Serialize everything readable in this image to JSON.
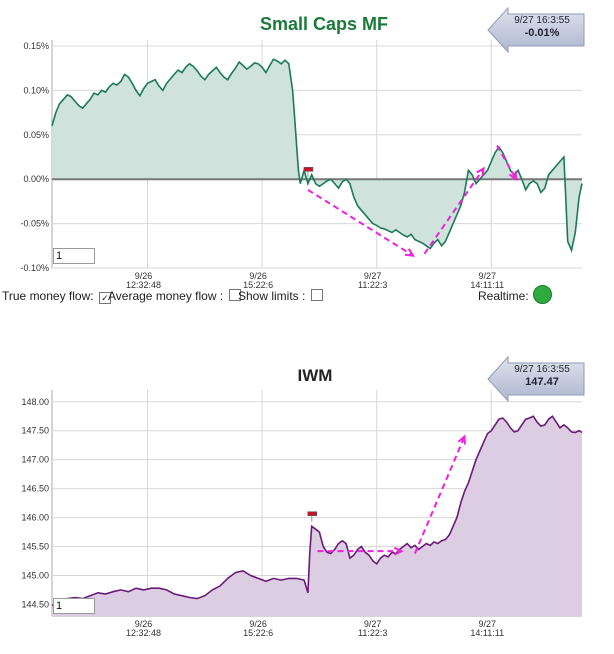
{
  "colors": {
    "mf_line": "#1b7a5a",
    "mf_fill": "#cfe3dc",
    "iwm_line": "#6a1b7a",
    "iwm_fill": "#dccde2",
    "annotation": "#ee22dd",
    "grid": "#d8d8d8",
    "zero_line": "#777777",
    "realtime_dot": "#2eaa3f"
  },
  "controls": {
    "true_money_flow_label": "True money flow:",
    "true_money_flow_checked": "✓",
    "average_money_flow_label": "Average money flow :",
    "show_limits_label": "Show limits :",
    "realtime_label": "Realtime:"
  },
  "chart_data": [
    {
      "type": "area",
      "title": "Small Caps MF",
      "xlabel": "",
      "ylabel": "",
      "ylim": [
        -0.1,
        0.15
      ],
      "y_ticks": [
        "0.15%",
        "0.10%",
        "0.05%",
        "0.00%",
        "-0.05%",
        "-0.10%"
      ],
      "y_tick_values": [
        0.15,
        0.1,
        0.05,
        0.0,
        -0.05,
        -0.1
      ],
      "x_ticks": [
        {
          "date": "9/26",
          "time": "12:32:48",
          "x": 100
        },
        {
          "date": "9/26",
          "time": "15:22:6",
          "x": 220
        },
        {
          "date": "9/27",
          "time": "11:22:3",
          "x": 340
        },
        {
          "date": "9/27",
          "time": "14:11:11",
          "x": 460
        }
      ],
      "xlim": [
        0,
        555
      ],
      "grid": true,
      "badge": {
        "time": "9/27 16:3:55",
        "value": "-0.01%"
      },
      "input_value": "1",
      "marker": {
        "x": 268,
        "y": 0.01
      },
      "series": [
        {
          "x": [
            0,
            4,
            8,
            12,
            16,
            20,
            24,
            28,
            32,
            36,
            40,
            44,
            48,
            52,
            56,
            60,
            64,
            68,
            72,
            76,
            80,
            84,
            88,
            92,
            96,
            100,
            104,
            108,
            112,
            116,
            120,
            124,
            128,
            132,
            136,
            140,
            144,
            148,
            152,
            156,
            160,
            164,
            168,
            172,
            176,
            180,
            184,
            188,
            192,
            196,
            200,
            204,
            208,
            212,
            216,
            220,
            224,
            228,
            232,
            236,
            240,
            244,
            248,
            252,
            254,
            256,
            258,
            260,
            264,
            268,
            272,
            276,
            280,
            284,
            288,
            292,
            296,
            300,
            304,
            308,
            312,
            316,
            320,
            324,
            328,
            332,
            336,
            340,
            344,
            348,
            352,
            356,
            360,
            364,
            368,
            372,
            376,
            380,
            384,
            388,
            392,
            396,
            400,
            404,
            408,
            412,
            416,
            420,
            424,
            428,
            432,
            436,
            440,
            444,
            448,
            452,
            456,
            460,
            464,
            468,
            472,
            476,
            480,
            484,
            488,
            492,
            496,
            500,
            504,
            508,
            512,
            516,
            520,
            524,
            528,
            532,
            536,
            540,
            544,
            548,
            552,
            555
          ],
          "y": [
            0.06,
            0.075,
            0.085,
            0.09,
            0.095,
            0.093,
            0.088,
            0.083,
            0.08,
            0.085,
            0.09,
            0.097,
            0.095,
            0.1,
            0.098,
            0.104,
            0.108,
            0.106,
            0.11,
            0.118,
            0.115,
            0.108,
            0.1,
            0.094,
            0.102,
            0.108,
            0.11,
            0.112,
            0.105,
            0.1,
            0.108,
            0.113,
            0.118,
            0.123,
            0.12,
            0.126,
            0.13,
            0.127,
            0.122,
            0.116,
            0.112,
            0.118,
            0.122,
            0.126,
            0.12,
            0.115,
            0.112,
            0.119,
            0.125,
            0.132,
            0.128,
            0.124,
            0.127,
            0.131,
            0.13,
            0.126,
            0.12,
            0.128,
            0.135,
            0.133,
            0.13,
            0.134,
            0.13,
            0.1,
            0.07,
            0.04,
            0.01,
            -0.005,
            0.01,
            -0.005,
            0.005,
            -0.005,
            -0.008,
            -0.005,
            -0.002,
            0.0,
            -0.005,
            -0.01,
            -0.003,
            0.0,
            -0.005,
            -0.02,
            -0.03,
            -0.035,
            -0.04,
            -0.045,
            -0.05,
            -0.052,
            -0.055,
            -0.056,
            -0.058,
            -0.06,
            -0.057,
            -0.06,
            -0.063,
            -0.065,
            -0.062,
            -0.068,
            -0.07,
            -0.072,
            -0.075,
            -0.078,
            -0.072,
            -0.068,
            -0.075,
            -0.07,
            -0.06,
            -0.05,
            -0.04,
            -0.03,
            -0.015,
            0.01,
            0.005,
            -0.005,
            0.0,
            0.005,
            0.01,
            0.02,
            0.03,
            0.036,
            0.03,
            0.02,
            0.01,
            0.005,
            0.01,
            0.0,
            -0.012,
            -0.005,
            -0.002,
            -0.005,
            -0.015,
            -0.01,
            0.005,
            0.01,
            0.015,
            0.02,
            0.025,
            -0.07,
            -0.08,
            -0.06,
            -0.02,
            -0.005
          ]
        }
      ]
    },
    {
      "type": "area",
      "title": "IWM",
      "xlabel": "",
      "ylabel": "",
      "ylim": [
        144.3,
        148.1
      ],
      "y_ticks": [
        "148.00",
        "147.50",
        "147.00",
        "146.50",
        "146.00",
        "145.50",
        "145.00",
        "144.50"
      ],
      "y_tick_values": [
        148.0,
        147.5,
        147.0,
        146.5,
        146.0,
        145.5,
        145.0,
        144.5
      ],
      "x_ticks": [
        {
          "date": "9/26",
          "time": "12:32:48",
          "x": 100
        },
        {
          "date": "9/26",
          "time": "15:22:6",
          "x": 220
        },
        {
          "date": "9/27",
          "time": "11:22:3",
          "x": 340
        },
        {
          "date": "9/27",
          "time": "14:11:11",
          "x": 460
        }
      ],
      "xlim": [
        0,
        555
      ],
      "grid": true,
      "badge": {
        "time": "9/27 16:3:55",
        "value": "147.47"
      },
      "input_value": "1",
      "marker": {
        "x": 272,
        "y": 146.05
      },
      "series": [
        {
          "x": [
            0,
            8,
            16,
            24,
            32,
            40,
            48,
            56,
            64,
            72,
            80,
            88,
            96,
            104,
            112,
            120,
            128,
            136,
            144,
            152,
            160,
            168,
            176,
            184,
            192,
            200,
            208,
            216,
            224,
            232,
            240,
            248,
            256,
            264,
            268,
            270,
            272,
            276,
            280,
            284,
            288,
            292,
            296,
            300,
            304,
            308,
            312,
            316,
            320,
            324,
            328,
            332,
            336,
            340,
            344,
            348,
            352,
            356,
            360,
            364,
            368,
            372,
            376,
            380,
            384,
            388,
            392,
            396,
            400,
            404,
            408,
            412,
            416,
            420,
            424,
            428,
            432,
            436,
            440,
            444,
            448,
            452,
            456,
            460,
            464,
            468,
            472,
            476,
            480,
            484,
            488,
            492,
            496,
            500,
            504,
            508,
            512,
            516,
            520,
            524,
            528,
            532,
            536,
            540,
            544,
            548,
            552,
            555
          ],
          "y": [
            144.48,
            144.55,
            144.6,
            144.62,
            144.6,
            144.65,
            144.7,
            144.68,
            144.72,
            144.75,
            144.72,
            144.78,
            144.75,
            144.78,
            144.78,
            144.75,
            144.68,
            144.65,
            144.62,
            144.6,
            144.65,
            144.75,
            144.82,
            144.95,
            145.05,
            145.08,
            145.0,
            144.95,
            144.9,
            144.95,
            144.92,
            144.95,
            144.95,
            144.92,
            144.7,
            145.4,
            145.85,
            145.8,
            145.75,
            145.5,
            145.4,
            145.38,
            145.45,
            145.55,
            145.6,
            145.55,
            145.3,
            145.35,
            145.45,
            145.5,
            145.4,
            145.35,
            145.25,
            145.2,
            145.3,
            145.35,
            145.32,
            145.4,
            145.38,
            145.45,
            145.5,
            145.55,
            145.48,
            145.52,
            145.45,
            145.5,
            145.55,
            145.52,
            145.58,
            145.55,
            145.6,
            145.62,
            145.7,
            145.85,
            146.0,
            146.25,
            146.45,
            146.6,
            146.8,
            147.0,
            147.15,
            147.3,
            147.45,
            147.5,
            147.6,
            147.7,
            147.72,
            147.65,
            147.55,
            147.48,
            147.5,
            147.6,
            147.7,
            147.72,
            147.75,
            147.65,
            147.58,
            147.6,
            147.7,
            147.75,
            147.65,
            147.55,
            147.6,
            147.55,
            147.48,
            147.47,
            147.5,
            147.47
          ]
        }
      ]
    }
  ]
}
